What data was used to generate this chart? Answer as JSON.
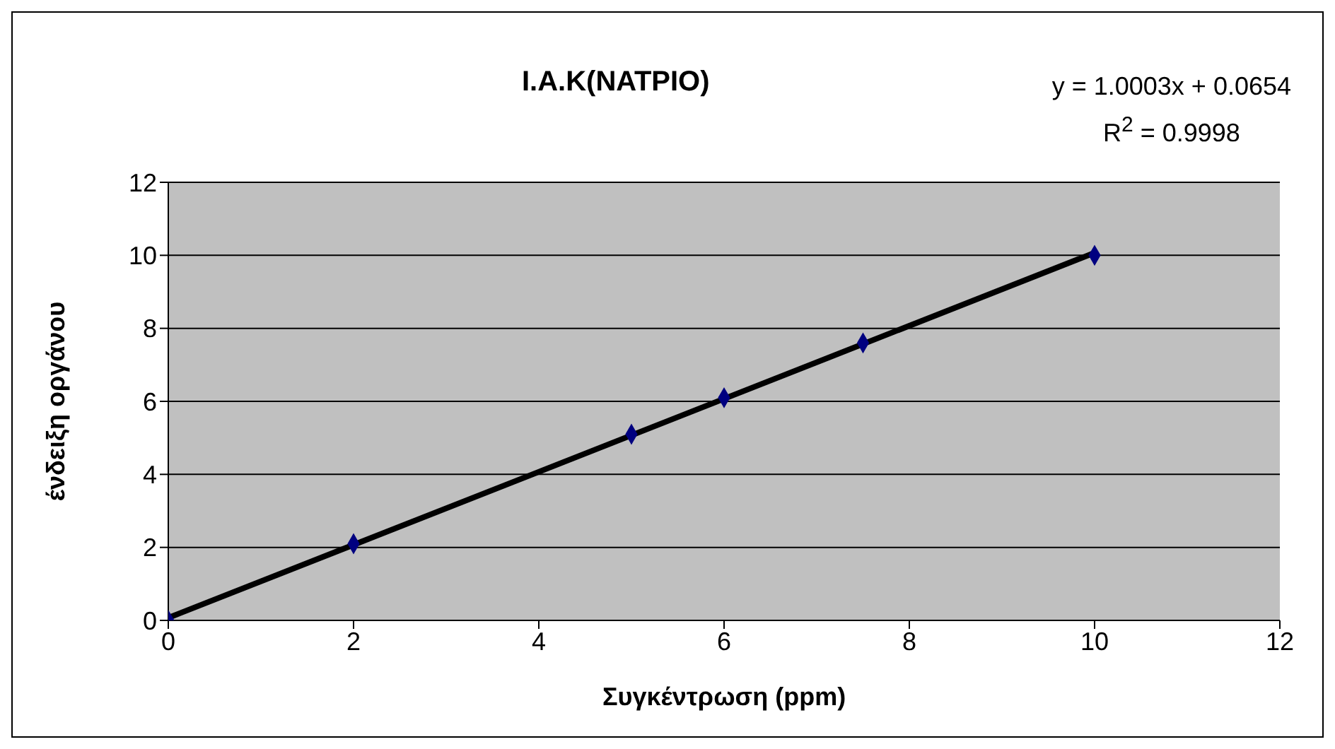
{
  "chart_data": {
    "type": "scatter",
    "title": "Ι.Α.Κ(ΝΑΤΡΙΟ)",
    "xlabel": "Συγκέντρωση (ppm)",
    "ylabel": "ένδειξη οργάνου",
    "annotations": [
      "y = 1.0003x + 0.0654",
      "R$^{2}$ = 0.9998"
    ],
    "series": [
      {
        "color": "#000080",
        "x": [
          0,
          2,
          5,
          6,
          7.5,
          10
        ],
        "values": [
          0,
          2.1,
          5.1,
          6.1,
          7.6,
          10
        ],
        "marker": "diamond"
      },
      {
        "type": "line",
        "color": "#000000",
        "x": [
          0,
          10
        ],
        "values": [
          0.07,
          10.07
        ],
        "marker": "none"
      }
    ],
    "xlim": [
      0,
      12
    ],
    "xticks": [
      0,
      2,
      4,
      6,
      8,
      10,
      12
    ],
    "ylim": [
      0,
      12
    ],
    "yticks": [
      0,
      2,
      4,
      6,
      8,
      10,
      12
    ],
    "grid": "y"
  }
}
